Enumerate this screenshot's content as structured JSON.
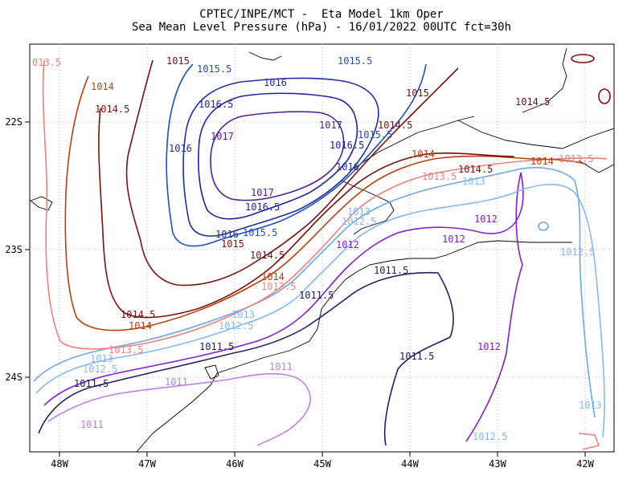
{
  "title": {
    "line1": "CPTEC/INPE/MCT -  Eta Model 1km Oper",
    "line2": "Sea Mean Level Pressure (hPa) - 16/01/2022 00UTC fct=30h"
  },
  "axes": {
    "x_ticks": [
      "48W",
      "47W",
      "46W",
      "45W",
      "44W",
      "43W",
      "42W"
    ],
    "y_ticks": [
      "22S",
      "23S",
      "24S"
    ]
  },
  "contour_labels": [
    {
      "text": "013.5",
      "color": "#f08080"
    },
    {
      "text": "1015",
      "color": "#7a1010"
    },
    {
      "text": "1015.5",
      "color": "#1f4fbf"
    },
    {
      "text": "1015.5",
      "color": "#1f4fbf"
    },
    {
      "text": "1014",
      "color": "#b84010"
    },
    {
      "text": "1016",
      "color": "#2030a0"
    },
    {
      "text": "1014.5",
      "color": "#7a1010"
    },
    {
      "text": "1016.5",
      "color": "#2020a0"
    },
    {
      "text": "1015",
      "color": "#7a1010"
    },
    {
      "text": "1014.5",
      "color": "#7a1010"
    },
    {
      "text": "1017",
      "color": "#5020a0"
    },
    {
      "text": "1014.5",
      "color": "#7a1010"
    },
    {
      "text": "1015.5",
      "color": "#1f4fbf"
    },
    {
      "text": "1016",
      "color": "#2030a0"
    },
    {
      "text": "1017",
      "color": "#5020a0"
    },
    {
      "text": "1016.5",
      "color": "#2020a0"
    },
    {
      "text": "1014",
      "color": "#b84010"
    },
    {
      "text": "1016",
      "color": "#2030a0"
    },
    {
      "text": "1013.5",
      "color": "#f08080"
    },
    {
      "text": "1014.5",
      "color": "#7a1010"
    },
    {
      "text": "1014",
      "color": "#b84010"
    },
    {
      "text": "1013.5",
      "color": "#f08080"
    },
    {
      "text": "1013",
      "color": "#87b8f0"
    },
    {
      "text": "1017",
      "color": "#5020a0"
    },
    {
      "text": "1016.5",
      "color": "#2020a0"
    },
    {
      "text": "1013",
      "color": "#87b8f0"
    },
    {
      "text": "1012.5",
      "color": "#87b8f0"
    },
    {
      "text": "1012",
      "color": "#8020d0"
    },
    {
      "text": "1012",
      "color": "#8020d0"
    },
    {
      "text": "1016",
      "color": "#2030a0"
    },
    {
      "text": "1015.5",
      "color": "#1f4fbf"
    },
    {
      "text": "1015",
      "color": "#7a1010"
    },
    {
      "text": "1012",
      "color": "#8020d0"
    },
    {
      "text": "1014.5",
      "color": "#7a1010"
    },
    {
      "text": "1012.5",
      "color": "#87b8f0"
    },
    {
      "text": "1011.5",
      "color": "#202060"
    },
    {
      "text": "1014",
      "color": "#b84010"
    },
    {
      "text": "1013.5",
      "color": "#f08080"
    },
    {
      "text": "1011.5",
      "color": "#202060"
    },
    {
      "text": "1014.5",
      "color": "#7a1010"
    },
    {
      "text": "1014",
      "color": "#b84010"
    },
    {
      "text": "1013",
      "color": "#87b8f0"
    },
    {
      "text": "1012.5",
      "color": "#87b8f0"
    },
    {
      "text": "1013.5",
      "color": "#f08080"
    },
    {
      "text": "1011.5",
      "color": "#202060"
    },
    {
      "text": "1012",
      "color": "#8020d0"
    },
    {
      "text": "1011.5",
      "color": "#202060"
    },
    {
      "text": "1013",
      "color": "#87b8f0"
    },
    {
      "text": "1011",
      "color": "#c080e0"
    },
    {
      "text": "1012.5",
      "color": "#87b8f0"
    },
    {
      "text": "1011.5",
      "color": "#202060"
    },
    {
      "text": "1011",
      "color": "#c080e0"
    },
    {
      "text": "1013",
      "color": "#87b8f0"
    },
    {
      "text": "1011",
      "color": "#c080e0"
    },
    {
      "text": "1012.5",
      "color": "#87b8f0"
    }
  ]
}
